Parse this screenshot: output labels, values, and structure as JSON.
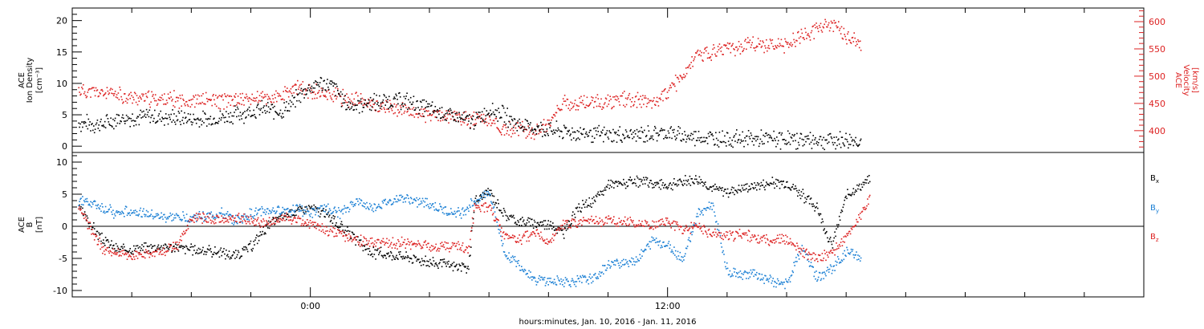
{
  "chart_data": [
    {
      "type": "scatter",
      "panel": "top",
      "title": "",
      "xlabel": "",
      "xlim": [
        -8,
        28
      ],
      "left_axis": {
        "label_lines": [
          "ACE",
          "Ion Density",
          "[cm⁻³]"
        ],
        "ylim": [
          -1,
          22
        ],
        "ticks": [
          0,
          5,
          10,
          15,
          20
        ],
        "minor_step": 1,
        "color": "#000000"
      },
      "right_axis": {
        "label_lines": [
          "ACE",
          "Velocity",
          "[km/s]"
        ],
        "ylim": [
          360,
          625
        ],
        "ticks": [
          400,
          450,
          500,
          550,
          600
        ],
        "minor_step": 10,
        "color": "#dd2222"
      },
      "series": [
        {
          "axis": "left",
          "color": "#000000",
          "points": [
            [
              -7.8,
              3.8
            ],
            [
              -7,
              3.5
            ],
            [
              -6.5,
              4.5
            ],
            [
              -5.5,
              4.8
            ],
            [
              -4.5,
              4.6
            ],
            [
              -3.5,
              4.2
            ],
            [
              -2.5,
              5.2
            ],
            [
              -1.5,
              6.0
            ],
            [
              -1,
              5.5
            ],
            [
              -0.5,
              7.5
            ],
            [
              -0.2,
              9.0
            ],
            [
              0.3,
              10.2
            ],
            [
              0.8,
              9.5
            ],
            [
              1.2,
              6.5
            ],
            [
              2,
              7.0
            ],
            [
              3,
              7.5
            ],
            [
              4,
              6.0
            ],
            [
              5,
              4.5
            ],
            [
              5.5,
              4.0
            ],
            [
              6,
              6.0
            ],
            [
              6.5,
              5.0
            ],
            [
              7,
              3.5
            ],
            [
              7.5,
              3.0
            ],
            [
              8,
              2.6
            ],
            [
              9,
              2.2
            ],
            [
              10,
              1.8
            ],
            [
              11,
              1.9
            ],
            [
              12,
              2.3
            ],
            [
              12.5,
              1.6
            ],
            [
              13,
              1.5
            ],
            [
              15,
              1.2
            ],
            [
              17,
              1.1
            ],
            [
              18.5,
              1.0
            ]
          ]
        },
        {
          "axis": "right",
          "color": "#dd2222",
          "points": [
            [
              -7.8,
              475
            ],
            [
              -7,
              470
            ],
            [
              -6,
              462
            ],
            [
              -5,
              458
            ],
            [
              -4,
              457
            ],
            [
              -3,
              456
            ],
            [
              -2,
              460
            ],
            [
              -1,
              462
            ],
            [
              -0.5,
              480
            ],
            [
              0,
              475
            ],
            [
              1,
              463
            ],
            [
              2,
              450
            ],
            [
              3,
              440
            ],
            [
              4,
              430
            ],
            [
              5,
              425
            ],
            [
              6,
              420
            ],
            [
              6.5,
              400
            ],
            [
              7,
              405
            ],
            [
              7.5,
              398
            ],
            [
              8,
              415
            ],
            [
              8.5,
              450
            ],
            [
              9.5,
              452
            ],
            [
              10.5,
              458
            ],
            [
              11.5,
              452
            ],
            [
              12,
              475
            ],
            [
              12.5,
              500
            ],
            [
              13,
              540
            ],
            [
              14,
              550
            ],
            [
              15,
              560
            ],
            [
              16,
              558
            ],
            [
              16.5,
              575
            ],
            [
              17,
              585
            ],
            [
              17.5,
              598
            ],
            [
              18,
              575
            ],
            [
              18.5,
              555
            ]
          ]
        }
      ]
    },
    {
      "type": "scatter",
      "panel": "bottom",
      "title": "",
      "xlabel": "hours:minutes, Jan. 10, 2016 - Jan. 11, 2016",
      "xlim": [
        -8,
        28
      ],
      "x_ticks": [
        0,
        12
      ],
      "x_tick_labels": [
        "0:00",
        "12:00"
      ],
      "left_axis": {
        "label_lines": [
          "ACE",
          "B",
          "[nT]"
        ],
        "ylim": [
          -11,
          11.5
        ],
        "ticks": [
          -10,
          -5,
          0,
          5,
          10
        ],
        "minor_step": 1,
        "color": "#000000"
      },
      "zero_line": true,
      "series": [
        {
          "name": "Bx",
          "color": "#000000",
          "points": [
            [
              -7.8,
              3
            ],
            [
              -7.5,
              1
            ],
            [
              -7,
              -2
            ],
            [
              -6.5,
              -3.5
            ],
            [
              -6,
              -3.5
            ],
            [
              -5,
              -3
            ],
            [
              -4,
              -3.5
            ],
            [
              -3,
              -4
            ],
            [
              -2.5,
              -4.5
            ],
            [
              -2,
              -3
            ],
            [
              -1.5,
              0
            ],
            [
              -1,
              1.5
            ],
            [
              -0.5,
              2.5
            ],
            [
              0,
              3
            ],
            [
              0.5,
              2
            ],
            [
              1,
              0
            ],
            [
              1.5,
              -2
            ],
            [
              2,
              -4
            ],
            [
              3,
              -4.5
            ],
            [
              4,
              -5.5
            ],
            [
              4.5,
              -6
            ],
            [
              5,
              -6.2
            ],
            [
              5.3,
              -6.5
            ],
            [
              5.5,
              4
            ],
            [
              6,
              5.5
            ],
            [
              6.5,
              2
            ],
            [
              7,
              0.8
            ],
            [
              8,
              0.5
            ],
            [
              8.5,
              -1
            ],
            [
              9,
              3
            ],
            [
              9.5,
              4
            ],
            [
              10,
              6.5
            ],
            [
              11,
              7
            ],
            [
              12,
              6.5
            ],
            [
              13,
              7.5
            ],
            [
              13.5,
              6
            ],
            [
              14,
              5.5
            ],
            [
              15,
              6.5
            ],
            [
              16,
              7
            ],
            [
              16.5,
              5
            ],
            [
              17,
              3
            ],
            [
              17.5,
              -3
            ],
            [
              18,
              5
            ],
            [
              18.5,
              6.5
            ],
            [
              18.8,
              7.5
            ]
          ]
        },
        {
          "name": "By",
          "color": "#1a7fd4",
          "points": [
            [
              -7.8,
              4
            ],
            [
              -7.5,
              4
            ],
            [
              -7,
              3
            ],
            [
              -6.5,
              2
            ],
            [
              -6,
              2.5
            ],
            [
              -5,
              1.5
            ],
            [
              -4,
              1.5
            ],
            [
              -3,
              2
            ],
            [
              -2.5,
              1
            ],
            [
              -2,
              2
            ],
            [
              -1.5,
              2.5
            ],
            [
              -1,
              2.5
            ],
            [
              -0.5,
              3
            ],
            [
              0,
              2
            ],
            [
              0.5,
              3
            ],
            [
              1,
              2
            ],
            [
              1.5,
              4
            ],
            [
              2,
              3
            ],
            [
              3,
              4.5
            ],
            [
              4,
              3.5
            ],
            [
              4.5,
              2.5
            ],
            [
              5,
              2
            ],
            [
              5.5,
              4
            ],
            [
              6,
              5.5
            ],
            [
              6.5,
              -4
            ],
            [
              7,
              -6
            ],
            [
              7.5,
              -8
            ],
            [
              8,
              -8.5
            ],
            [
              9,
              -8.5
            ],
            [
              9.5,
              -8
            ],
            [
              10,
              -6
            ],
            [
              11,
              -5
            ],
            [
              11.5,
              -2
            ],
            [
              12,
              -3
            ],
            [
              12.5,
              -5
            ],
            [
              13,
              2
            ],
            [
              13.5,
              3.5
            ],
            [
              14,
              -7
            ],
            [
              15,
              -7.5
            ],
            [
              15.5,
              -8.5
            ],
            [
              16,
              -9
            ],
            [
              16.5,
              -3
            ],
            [
              17,
              -8
            ],
            [
              17.5,
              -6.5
            ],
            [
              18,
              -4
            ],
            [
              18.5,
              -5
            ]
          ]
        },
        {
          "name": "Bz",
          "color": "#dd2222",
          "points": [
            [
              -7.8,
              2.5
            ],
            [
              -7.5,
              0.5
            ],
            [
              -7,
              -3.5
            ],
            [
              -6.5,
              -4
            ],
            [
              -6,
              -4.5
            ],
            [
              -5,
              -4
            ],
            [
              -4.5,
              -3
            ],
            [
              -4,
              1.5
            ],
            [
              -3,
              1
            ],
            [
              -2.5,
              1.5
            ],
            [
              -2,
              1
            ],
            [
              -1.5,
              0.5
            ],
            [
              -1,
              1.5
            ],
            [
              -0.5,
              1
            ],
            [
              0,
              0.5
            ],
            [
              0.5,
              -0.5
            ],
            [
              1,
              -1
            ],
            [
              1.5,
              -2
            ],
            [
              2,
              -2.5
            ],
            [
              3,
              -2.5
            ],
            [
              4,
              -3
            ],
            [
              5,
              -3
            ],
            [
              5.3,
              -3.5
            ],
            [
              5.5,
              3
            ],
            [
              6,
              3
            ],
            [
              6.5,
              -1.5
            ],
            [
              7,
              -2
            ],
            [
              7.5,
              -1
            ],
            [
              8,
              -2.5
            ],
            [
              8.5,
              0.5
            ],
            [
              9,
              0.5
            ],
            [
              10,
              1
            ],
            [
              11,
              0.5
            ],
            [
              11.5,
              0
            ],
            [
              12,
              1
            ],
            [
              12.5,
              -0.5
            ],
            [
              13,
              0
            ],
            [
              13.5,
              -1
            ],
            [
              14,
              -1.5
            ],
            [
              14.5,
              -1
            ],
            [
              15,
              -2
            ],
            [
              16,
              -2
            ],
            [
              16.5,
              -4
            ],
            [
              17,
              -5
            ],
            [
              17.5,
              -4
            ],
            [
              18,
              -1.5
            ],
            [
              18.5,
              2
            ],
            [
              18.8,
              4.5
            ]
          ]
        }
      ],
      "legend": {
        "placement": "right",
        "entries": [
          {
            "base": "B",
            "sub": "x",
            "color": "#000000"
          },
          {
            "base": "B",
            "sub": "y",
            "color": "#1a7fd4"
          },
          {
            "base": "B",
            "sub": "z",
            "color": "#dd2222"
          }
        ]
      }
    }
  ]
}
